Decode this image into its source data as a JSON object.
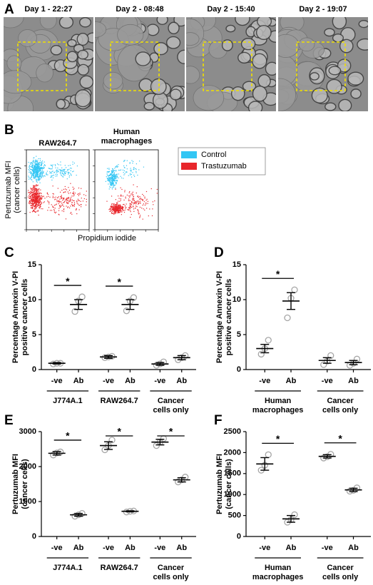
{
  "panel_a": {
    "label": "A",
    "frames": [
      "Day 1 - 22:27",
      "Day 2 - 08:48",
      "Day 2 - 15:40",
      "Day 2 - 19:07"
    ]
  },
  "panel_b": {
    "label": "B",
    "plots": [
      [
        "RAW264.7"
      ],
      [
        "Human",
        "macrophages"
      ]
    ],
    "ylabel": [
      "Pertuzumab MFI",
      "(cancer cells)"
    ],
    "xlabel": "Propidium iodide",
    "legend": [
      {
        "name": "Control",
        "color": "#33c6f4"
      },
      {
        "name": "Trastuzumab",
        "color": "#e8262b"
      }
    ]
  },
  "chart_data": [
    {
      "type": "dot",
      "panel": "C",
      "ylabel": [
        "Percentage Annexin V-PI",
        "positive cancer cells"
      ],
      "categories": [
        "-ve",
        "Ab",
        "-ve",
        "Ab",
        "-ve",
        "Ab"
      ],
      "groups": [
        [
          "J774A.1"
        ],
        [
          "RAW264.7"
        ],
        [
          "Cancer",
          "cells only"
        ]
      ],
      "means": [
        0.9,
        9.3,
        1.8,
        9.3,
        0.8,
        1.7
      ],
      "errors": [
        0.1,
        0.7,
        0.2,
        0.7,
        0.2,
        0.3
      ],
      "points": [
        [
          0.8,
          0.9,
          0.9
        ],
        [
          8.3,
          9.8,
          10.4
        ],
        [
          1.7,
          1.8,
          1.9
        ],
        [
          8.4,
          9.8,
          10.3
        ],
        [
          0.6,
          0.8,
          1.1
        ],
        [
          1.4,
          1.7,
          2.0
        ]
      ],
      "ylim": [
        0,
        15
      ],
      "yticks": [
        0,
        5,
        10,
        15
      ],
      "annotations": [
        "*",
        "*"
      ],
      "color": "#a6a6a6"
    },
    {
      "type": "dot",
      "panel": "D",
      "ylabel": [
        "Percentage Annexin V-PI",
        "positive cancer cells"
      ],
      "categories": [
        "-ve",
        "Ab",
        "-ve",
        "Ab"
      ],
      "groups": [
        [
          "Human",
          "macrophages"
        ],
        [
          "Cancer",
          "cells only"
        ]
      ],
      "means": [
        3.0,
        9.8,
        1.3,
        1.0
      ],
      "errors": [
        0.6,
        1.2,
        0.4,
        0.3
      ],
      "points": [
        [
          2.2,
          3.0,
          4.2
        ],
        [
          7.4,
          10.2,
          11.4
        ],
        [
          0.7,
          1.2,
          2.0
        ],
        [
          0.6,
          0.9,
          1.5
        ]
      ],
      "ylim": [
        0,
        15
      ],
      "yticks": [
        0,
        5,
        10,
        15
      ],
      "annotations": [
        "*"
      ],
      "color": "#a6a6a6"
    },
    {
      "type": "dot",
      "panel": "E",
      "ylabel": [
        "Pertuzumab MFI",
        "(cancer cells)"
      ],
      "categories": [
        "-ve",
        "Ab",
        "-ve",
        "Ab",
        "-ve",
        "Ab"
      ],
      "groups": [
        [
          "J774A.1"
        ],
        [
          "RAW264.7"
        ],
        [
          "Cancer",
          "cells only"
        ]
      ],
      "means": [
        2380,
        620,
        2600,
        720,
        2700,
        1620
      ],
      "errors": [
        50,
        40,
        110,
        15,
        80,
        60
      ],
      "points": [
        [
          2330,
          2390,
          2420
        ],
        [
          580,
          620,
          660
        ],
        [
          2480,
          2600,
          2760
        ],
        [
          700,
          720,
          730
        ],
        [
          2600,
          2700,
          2800
        ],
        [
          1560,
          1620,
          1700
        ]
      ],
      "ylim": [
        0,
        3000
      ],
      "yticks": [
        0,
        1000,
        2000,
        3000
      ],
      "annotations": [
        "*",
        "*",
        "*"
      ],
      "color": "#a6a6a6"
    },
    {
      "type": "dot",
      "panel": "F",
      "ylabel": [
        "Pertuzumab MFI",
        "(cancer cells)"
      ],
      "categories": [
        "-ve",
        "Ab",
        "-ve",
        "Ab"
      ],
      "groups": [
        [
          "Human",
          "macrophages"
        ],
        [
          "Cancer",
          "cells only"
        ]
      ],
      "means": [
        1730,
        420,
        1910,
        1110
      ],
      "errors": [
        150,
        80,
        40,
        40
      ],
      "points": [
        [
          1580,
          1700,
          1950
        ],
        [
          340,
          400,
          520
        ],
        [
          1870,
          1900,
          1960
        ],
        [
          1080,
          1100,
          1160
        ]
      ],
      "ylim": [
        0,
        2500
      ],
      "yticks": [
        0,
        500,
        1000,
        1500,
        2000,
        2500
      ],
      "annotations": [
        "*",
        "*"
      ],
      "color": "#a6a6a6"
    }
  ]
}
